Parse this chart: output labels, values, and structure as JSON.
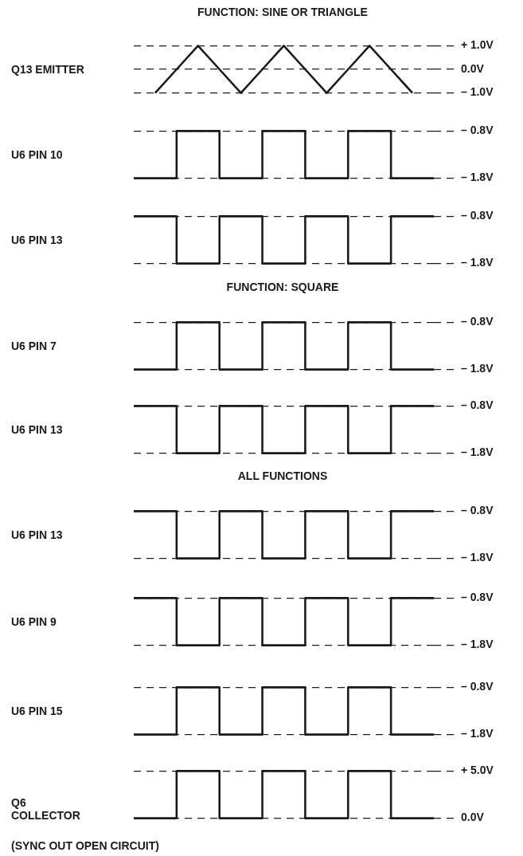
{
  "chart_data": [
    {
      "type": "line",
      "title": "FUNCTION: SINE OR TRIANGLE",
      "ylabel": "Q13 EMITTER",
      "categories": [
        null,
        null,
        null,
        null,
        null,
        null,
        null,
        null,
        null,
        null,
        null,
        null,
        null,
        null,
        null
      ],
      "values": [
        null,
        -1,
        0,
        1,
        0,
        -1,
        0,
        1,
        0,
        -1,
        0,
        1,
        0,
        -1,
        null
      ],
      "color": "#1a1a1a",
      "ylim": [
        -1,
        1
      ],
      "yticks": [
        {
          "value": 1,
          "label": "+ 1.0V"
        },
        {
          "value": 0,
          "label": "0.0V"
        },
        {
          "value": -1,
          "label": "– 1.0V"
        }
      ],
      "grid": "y",
      "marker": "none",
      "line_style": "solid",
      "tick_labels": "y"
    },
    {
      "type": "step",
      "ylabel": "U6 PIN 10",
      "categories": [
        null,
        null,
        null,
        null,
        null,
        null,
        null,
        null,
        null,
        null,
        null,
        null,
        null,
        null,
        null
      ],
      "values": [
        -1.8,
        -1.8,
        -0.8,
        -0.8,
        -1.8,
        -1.8,
        -0.8,
        -0.8,
        -1.8,
        -1.8,
        -0.8,
        -0.8,
        -1.8,
        -1.8,
        -1.8
      ],
      "color": "#1a1a1a",
      "ylim": [
        -1.8,
        -0.8
      ],
      "yticks": [
        {
          "value": -0.8,
          "label": "– 0.8V"
        },
        {
          "value": -1.8,
          "label": "– 1.8V"
        }
      ],
      "grid": "y",
      "marker": "none",
      "line_style": "solid",
      "tick_labels": "y"
    },
    {
      "type": "step",
      "ylabel": "U6 PIN 13",
      "categories": [
        null,
        null,
        null,
        null,
        null,
        null,
        null,
        null,
        null,
        null,
        null,
        null,
        null,
        null,
        null
      ],
      "values": [
        -0.8,
        -0.8,
        -1.8,
        -1.8,
        -0.8,
        -0.8,
        -1.8,
        -1.8,
        -0.8,
        -0.8,
        -1.8,
        -1.8,
        -0.8,
        -0.8,
        -0.8
      ],
      "color": "#1a1a1a",
      "ylim": [
        -1.8,
        -0.8
      ],
      "yticks": [
        {
          "value": -0.8,
          "label": "– 0.8V"
        },
        {
          "value": -1.8,
          "label": "– 1.8V"
        }
      ],
      "grid": "y",
      "marker": "none",
      "line_style": "solid",
      "tick_labels": "y"
    },
    {
      "type": "step",
      "title": "FUNCTION: SQUARE",
      "ylabel": "U6 PIN 7",
      "categories": [
        null,
        null,
        null,
        null,
        null,
        null,
        null,
        null,
        null,
        null,
        null,
        null,
        null,
        null,
        null
      ],
      "values": [
        -1.8,
        -1.8,
        -0.8,
        -0.8,
        -1.8,
        -1.8,
        -0.8,
        -0.8,
        -1.8,
        -1.8,
        -0.8,
        -0.8,
        -1.8,
        -1.8,
        -1.8
      ],
      "color": "#1a1a1a",
      "ylim": [
        -1.8,
        -0.8
      ],
      "yticks": [
        {
          "value": -0.8,
          "label": "– 0.8V"
        },
        {
          "value": -1.8,
          "label": "– 1.8V"
        }
      ],
      "grid": "y",
      "marker": "none",
      "line_style": "solid",
      "tick_labels": "y"
    },
    {
      "type": "step",
      "ylabel": "U6 PIN 13",
      "categories": [
        null,
        null,
        null,
        null,
        null,
        null,
        null,
        null,
        null,
        null,
        null,
        null,
        null,
        null,
        null
      ],
      "values": [
        -0.8,
        -0.8,
        -1.8,
        -1.8,
        -0.8,
        -0.8,
        -1.8,
        -1.8,
        -0.8,
        -0.8,
        -1.8,
        -1.8,
        -0.8,
        -0.8,
        -0.8
      ],
      "color": "#1a1a1a",
      "ylim": [
        -1.8,
        -0.8
      ],
      "yticks": [
        {
          "value": -0.8,
          "label": "– 0.8V"
        },
        {
          "value": -1.8,
          "label": "– 1.8V"
        }
      ],
      "grid": "y",
      "marker": "none",
      "line_style": "solid",
      "tick_labels": "y"
    },
    {
      "type": "step",
      "title": "ALL FUNCTIONS",
      "ylabel": "U6 PIN 13",
      "categories": [
        null,
        null,
        null,
        null,
        null,
        null,
        null,
        null,
        null,
        null,
        null,
        null,
        null,
        null,
        null
      ],
      "values": [
        -0.8,
        -0.8,
        -1.8,
        -1.8,
        -0.8,
        -0.8,
        -1.8,
        -1.8,
        -0.8,
        -0.8,
        -1.8,
        -1.8,
        -0.8,
        -0.8,
        -0.8
      ],
      "color": "#1a1a1a",
      "ylim": [
        -1.8,
        -0.8
      ],
      "yticks": [
        {
          "value": -0.8,
          "label": "– 0.8V"
        },
        {
          "value": -1.8,
          "label": "– 1.8V"
        }
      ],
      "grid": "y",
      "marker": "none",
      "line_style": "solid",
      "tick_labels": "y"
    },
    {
      "type": "step",
      "ylabel": "U6 PIN 9",
      "categories": [
        null,
        null,
        null,
        null,
        null,
        null,
        null,
        null,
        null,
        null,
        null,
        null,
        null,
        null,
        null
      ],
      "values": [
        -0.8,
        -0.8,
        -1.8,
        -1.8,
        -0.8,
        -0.8,
        -1.8,
        -1.8,
        -0.8,
        -0.8,
        -1.8,
        -1.8,
        -0.8,
        -0.8,
        -0.8
      ],
      "color": "#1a1a1a",
      "ylim": [
        -1.8,
        -0.8
      ],
      "yticks": [
        {
          "value": -0.8,
          "label": "– 0.8V"
        },
        {
          "value": -1.8,
          "label": "– 1.8V"
        }
      ],
      "grid": "y",
      "marker": "none",
      "line_style": "solid",
      "tick_labels": "y"
    },
    {
      "type": "step",
      "ylabel": "U6 PIN 15",
      "categories": [
        null,
        null,
        null,
        null,
        null,
        null,
        null,
        null,
        null,
        null,
        null,
        null,
        null,
        null,
        null
      ],
      "values": [
        -1.8,
        -1.8,
        -0.8,
        -0.8,
        -1.8,
        -1.8,
        -0.8,
        -0.8,
        -1.8,
        -1.8,
        -0.8,
        -0.8,
        -1.8,
        -1.8,
        -1.8
      ],
      "color": "#1a1a1a",
      "ylim": [
        -1.8,
        -0.8
      ],
      "yticks": [
        {
          "value": -0.8,
          "label": "– 0.8V"
        },
        {
          "value": -1.8,
          "label": "– 1.8V"
        }
      ],
      "grid": "y",
      "marker": "none",
      "line_style": "solid",
      "tick_labels": "y"
    },
    {
      "type": "step",
      "ylabel": "Q6 COLLECTOR",
      "categories": [
        null,
        null,
        null,
        null,
        null,
        null,
        null,
        null,
        null,
        null,
        null,
        null,
        null,
        null,
        null
      ],
      "values": [
        0,
        0,
        5,
        5,
        0,
        0,
        5,
        5,
        0,
        0,
        5,
        5,
        0,
        0,
        0
      ],
      "color": "#1a1a1a",
      "ylim": [
        0,
        5
      ],
      "yticks": [
        {
          "value": 5,
          "label": "+ 5.0V"
        },
        {
          "value": 0,
          "label": "0.0V"
        }
      ],
      "grid": "y",
      "marker": "none",
      "line_style": "solid",
      "tick_labels": "y",
      "annotations": [
        "(SYNC OUT OPEN CIRCUIT)"
      ]
    }
  ]
}
